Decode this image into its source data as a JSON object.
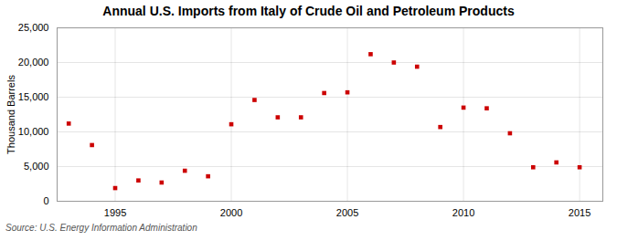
{
  "chart_data": {
    "type": "scatter",
    "title": "Annual U.S. Imports from Italy of Crude Oil and Petroleum Products",
    "ylabel": "Thousand Barrels",
    "source": "Source: U.S. Energy Information Administration",
    "x": [
      1993,
      1994,
      1995,
      1996,
      1997,
      1998,
      1999,
      2000,
      2001,
      2002,
      2003,
      2004,
      2005,
      2006,
      2007,
      2008,
      2009,
      2010,
      2011,
      2012,
      2013,
      2014,
      2015
    ],
    "values": [
      11200,
      8100,
      1900,
      3000,
      2700,
      4400,
      3600,
      11100,
      14600,
      12100,
      12100,
      15600,
      15700,
      21200,
      20000,
      19400,
      10700,
      13500,
      13400,
      9800,
      4900,
      5600,
      4900
    ],
    "color": "#cc0000",
    "marker": "square",
    "xlim": [
      1992.5,
      2016
    ],
    "xticks": [
      1995,
      2000,
      2005,
      2010,
      2015
    ],
    "ylim": [
      0,
      25000
    ],
    "yticks": [
      0,
      {
        "value": 5000,
        "label": "5,000"
      },
      {
        "value": 10000,
        "label": "10,000"
      },
      {
        "value": 15000,
        "label": "15,000"
      },
      {
        "value": 20000,
        "label": "20,000"
      },
      {
        "value": 25000,
        "label": "25,000"
      }
    ],
    "grid": true
  }
}
